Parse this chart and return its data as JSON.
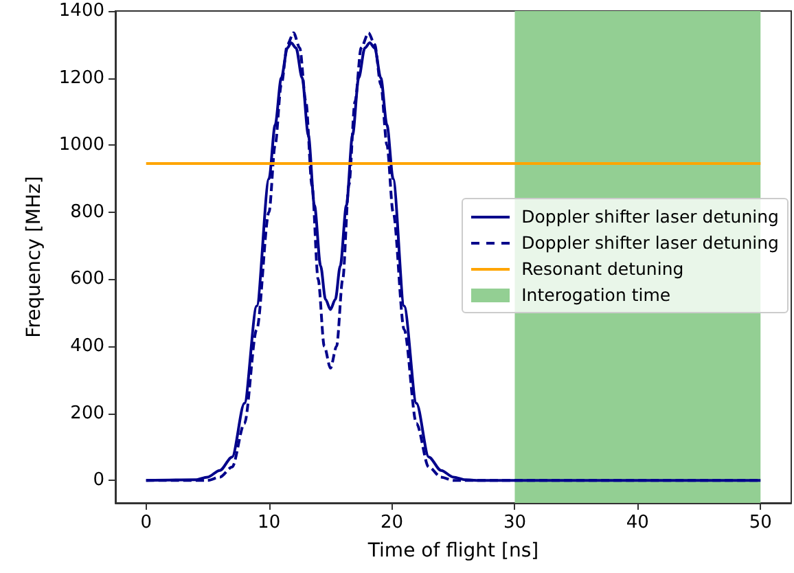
{
  "chart_data": {
    "type": "line",
    "xlabel": "Time of flight [ns]",
    "ylabel": "Frequency [MHz]",
    "xlim": [
      -2.5,
      52.5
    ],
    "xticks": [
      0,
      10,
      20,
      30,
      40,
      50
    ],
    "ylim": [
      -67,
      1400
    ],
    "yticks": [
      0,
      200,
      400,
      600,
      800,
      1000,
      1200,
      1400
    ],
    "grid": false,
    "legend": "right",
    "marker": "none",
    "series": [
      {
        "name": "Doppler shifter laser detuning",
        "color": "#00008b",
        "line_style": "solid",
        "x": [
          0,
          4,
          5,
          6,
          7,
          8,
          9,
          10,
          10.5,
          11,
          11.5,
          11.8,
          12.2,
          12.7,
          13.2,
          13.7,
          14.2,
          14.6,
          15,
          15.4,
          15.8,
          16.3,
          16.8,
          17.3,
          17.8,
          18.2,
          18.6,
          19.1,
          19.6,
          20.1,
          21,
          22,
          23,
          24,
          25,
          26,
          27,
          50
        ],
        "values": [
          0,
          2,
          10,
          30,
          70,
          230,
          520,
          900,
          1060,
          1200,
          1290,
          1305,
          1290,
          1200,
          1030,
          820,
          640,
          540,
          510,
          540,
          640,
          820,
          1030,
          1200,
          1290,
          1305,
          1290,
          1200,
          1060,
          900,
          520,
          230,
          70,
          30,
          10,
          2,
          0,
          0
        ]
      },
      {
        "name": "Doppler shifter laser detuning",
        "color": "#00008b",
        "line_style": "dashed",
        "x": [
          0,
          5,
          6,
          7,
          8,
          9,
          10,
          10.5,
          11,
          11.5,
          12,
          12.5,
          13,
          13.5,
          14,
          14.5,
          15,
          15.5,
          16,
          16.5,
          17,
          17.5,
          18.1,
          18.6,
          19.1,
          19.6,
          20.1,
          21,
          22,
          23,
          24,
          25,
          50
        ],
        "values": [
          0,
          0,
          10,
          40,
          170,
          450,
          800,
          1000,
          1180,
          1300,
          1335,
          1290,
          1130,
          880,
          600,
          400,
          335,
          400,
          600,
          880,
          1130,
          1290,
          1335,
          1300,
          1180,
          1000,
          800,
          450,
          170,
          40,
          10,
          0,
          0
        ]
      },
      {
        "name": "Resonant detuning",
        "color": "#ffa500",
        "line_style": "solid",
        "x": [
          0,
          50
        ],
        "values": [
          945,
          945
        ]
      }
    ],
    "bands": [
      {
        "axis": "x",
        "from": 30,
        "to": 50,
        "label": "Interogation time",
        "color": "#93cf93"
      }
    ]
  }
}
